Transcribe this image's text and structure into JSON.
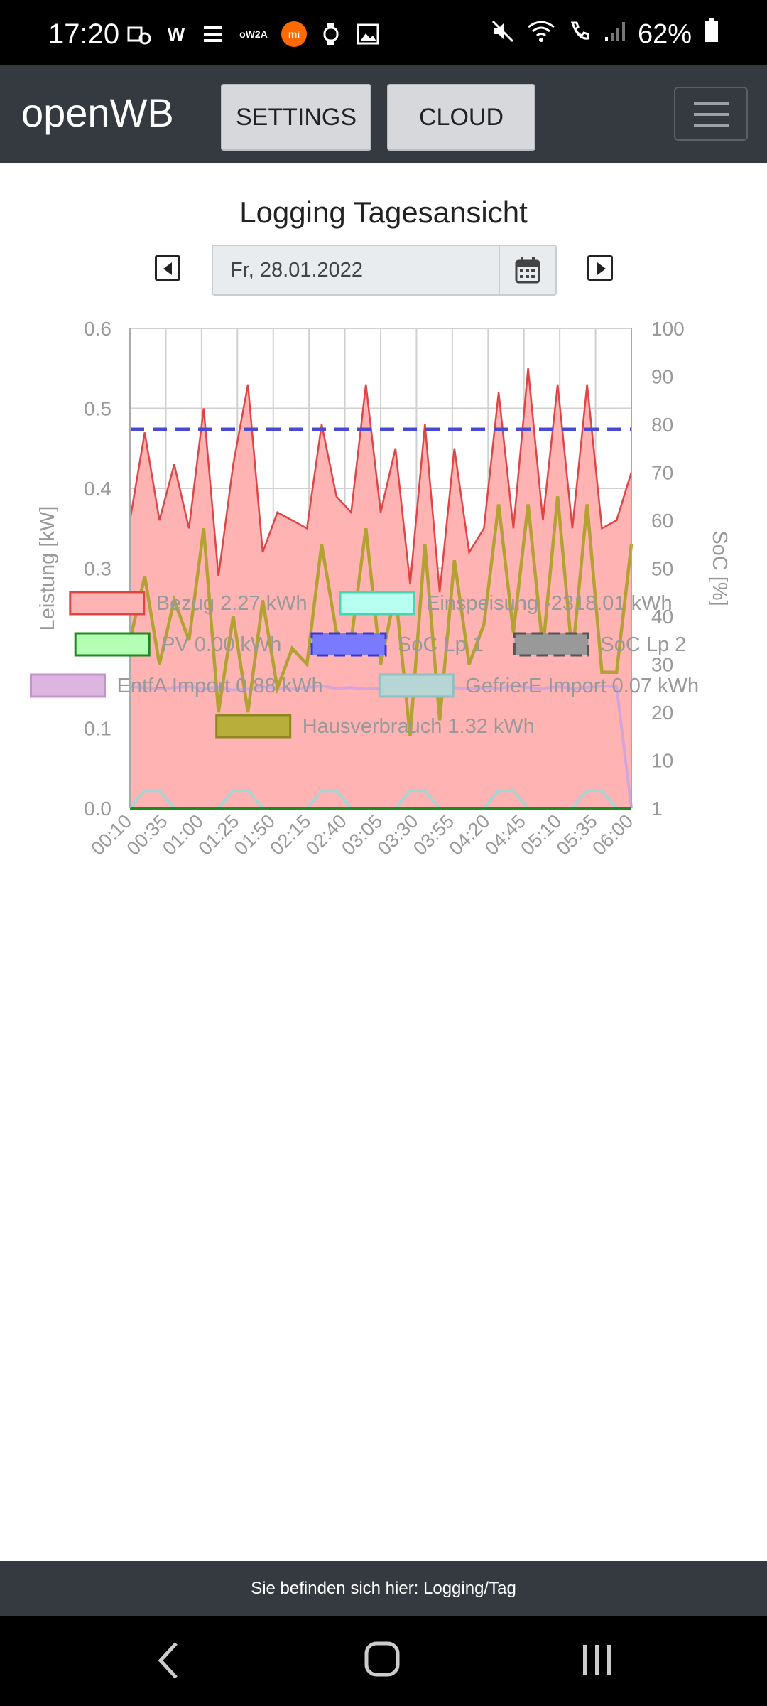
{
  "status_bar": {
    "time": "17:20",
    "left_icons": [
      "alarm-icon",
      "w-icon",
      "network-icon",
      "ow2a-icon",
      "mi-icon",
      "watch-icon",
      "image-icon"
    ],
    "w_text": "W",
    "ow2a_text": "oW2A",
    "mi_text": "mi",
    "battery": "62%",
    "right_icons": [
      "mute-icon",
      "wifi-icon",
      "call-icon",
      "signal-icon",
      "battery-icon"
    ]
  },
  "navbar": {
    "brand": "openWB",
    "settings_label": "SETTINGS",
    "cloud_label": "CLOUD"
  },
  "page": {
    "title": "Logging Tagesansicht",
    "date": "Fr, 28.01.2022"
  },
  "chart_data": {
    "type": "line",
    "x_tick_labels": [
      "00:10",
      "00:35",
      "01:00",
      "01:25",
      "01:50",
      "02:15",
      "02:40",
      "03:05",
      "03:30",
      "03:55",
      "04:20",
      "04:45",
      "05:10",
      "05:35",
      "06:00"
    ],
    "ylabel": "Leistung [kW]",
    "ylabel_right": "SoC [%]",
    "ylim": [
      0,
      0.6
    ],
    "y_ticks": [
      "0.0",
      "0.1",
      "0.2",
      "0.3",
      "0.4",
      "0.5",
      "0.6"
    ],
    "ylim_right": [
      0,
      100
    ],
    "y_right_ticks": [
      "1",
      "10",
      "20",
      "30",
      "40",
      "50",
      "60",
      "70",
      "80",
      "90",
      "100"
    ],
    "grid": true,
    "colors": {
      "bezug_fill": "#ffb3b3",
      "bezug_line": "#e04545",
      "haus": "#b3a233",
      "entfa": "#d4a5d8",
      "gefriere": "#a8d4d4",
      "pv": "#1f8a1f",
      "soc1": "#4a4ad0",
      "soc2": "#888888",
      "einspeisung": "#7fffd4"
    },
    "series": [
      {
        "name": "Bezug",
        "values": [
          0.36,
          0.47,
          0.36,
          0.43,
          0.35,
          0.5,
          0.29,
          0.43,
          0.53,
          0.32,
          0.37,
          0.36,
          0.35,
          0.48,
          0.39,
          0.37,
          0.53,
          0.37,
          0.45,
          0.28,
          0.48,
          0.27,
          0.45,
          0.32,
          0.35,
          0.52,
          0.35,
          0.55,
          0.36,
          0.53,
          0.35,
          0.53,
          0.35,
          0.36,
          0.42
        ]
      },
      {
        "name": "Hausverbrauch",
        "values": [
          0.21,
          0.29,
          0.18,
          0.26,
          0.21,
          0.35,
          0.12,
          0.24,
          0.12,
          0.26,
          0.15,
          0.2,
          0.18,
          0.33,
          0.22,
          0.21,
          0.35,
          0.18,
          0.27,
          0.09,
          0.33,
          0.11,
          0.31,
          0.18,
          0.23,
          0.38,
          0.22,
          0.38,
          0.2,
          0.39,
          0.19,
          0.38,
          0.17,
          0.17,
          0.33
        ]
      },
      {
        "name": "EntfA Import",
        "values": [
          0.152,
          0.151,
          0.149,
          0.151,
          0.152,
          0.15,
          0.151,
          0.148,
          0.149,
          0.152,
          0.15,
          0.149,
          0.151,
          0.153,
          0.15,
          0.151,
          0.149,
          0.15,
          0.151,
          0.152,
          0.148,
          0.15,
          0.151,
          0.149,
          0.151,
          0.15,
          0.153,
          0.151,
          0.15,
          0.152,
          0.15,
          0.151,
          0.153,
          0.152,
          0.0
        ]
      },
      {
        "name": "GefrierE Import",
        "values": [
          0.0,
          0.022,
          0.022,
          0.0,
          0.0,
          0.0,
          0.0,
          0.022,
          0.022,
          0.0,
          0.0,
          0.0,
          0.0,
          0.022,
          0.022,
          0.0,
          0.0,
          0.0,
          0.0,
          0.022,
          0.022,
          0.0,
          0.0,
          0.0,
          0.0,
          0.022,
          0.022,
          0.0,
          0.0,
          0.0,
          0.0,
          0.022,
          0.022,
          0.0,
          0.0
        ]
      },
      {
        "name": "PV",
        "values": [
          0,
          0,
          0,
          0,
          0,
          0,
          0,
          0,
          0,
          0,
          0,
          0,
          0,
          0,
          0,
          0,
          0,
          0,
          0,
          0,
          0,
          0,
          0,
          0,
          0,
          0,
          0,
          0,
          0,
          0,
          0,
          0,
          0,
          0,
          0
        ]
      },
      {
        "name": "SoC Lp 1",
        "axis": "right",
        "values": [
          79,
          79
        ]
      }
    ],
    "legend": [
      {
        "name": "Bezug 2.27 kWh",
        "color": "#ffb3b3",
        "border": "#e04545",
        "dashed": false
      },
      {
        "name": "Einspeisung -2318.01 kWh",
        "color": "#b7fff0",
        "border": "#46d6b2",
        "dashed": false
      },
      {
        "name": "PV 0.00 kWh",
        "color": "#b3ffb3",
        "border": "#1f8a1f",
        "dashed": false
      },
      {
        "name": "SoC Lp 1",
        "color": "#7a7aff",
        "border": "#3a3ad0",
        "dashed": true
      },
      {
        "name": "SoC Lp 2",
        "color": "#999999",
        "border": "#555555",
        "dashed": true
      },
      {
        "name": "EntfA Import 0.88 kWh",
        "color": "#dcb6e0",
        "border": "#c593cc",
        "dashed": false
      },
      {
        "name": "GefrierE Import 0.07 kWh",
        "color": "#b6d6d6",
        "border": "#8fc1c1",
        "dashed": false
      },
      {
        "name": "Hausverbrauch 1.32 kWh",
        "color": "#b7ae3b",
        "border": "#8e8620",
        "dashed": false
      }
    ],
    "legend_placement": "bottom"
  },
  "footer": {
    "text": "Sie befinden sich hier: Logging/Tag"
  },
  "navigation_bar": {
    "icons": [
      "back-icon",
      "home-icon",
      "recents-icon"
    ]
  }
}
